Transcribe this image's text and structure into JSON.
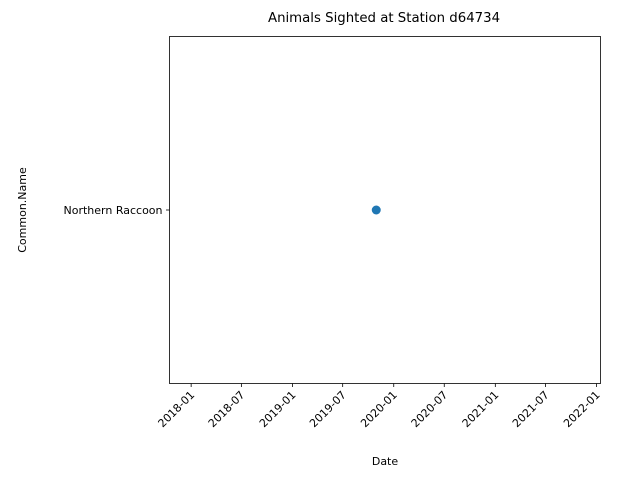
{
  "chart_data": {
    "type": "scatter",
    "title": "Animals Sighted at Station d64734",
    "xlabel": "Date",
    "ylabel": "Common.Name",
    "x_ticks": [
      "2018-01",
      "2018-07",
      "2019-01",
      "2019-07",
      "2020-01",
      "2020-07",
      "2021-01",
      "2021-07",
      "2022-01"
    ],
    "y_categories": [
      "Northern Raccoon"
    ],
    "points": [
      {
        "x": "2019-10-30",
        "y": "Northern Raccoon"
      }
    ],
    "xlim": [
      "2017-10-15",
      "2022-01-15"
    ],
    "grid": false,
    "legend": "none",
    "marker_color": "#1f77b4"
  }
}
